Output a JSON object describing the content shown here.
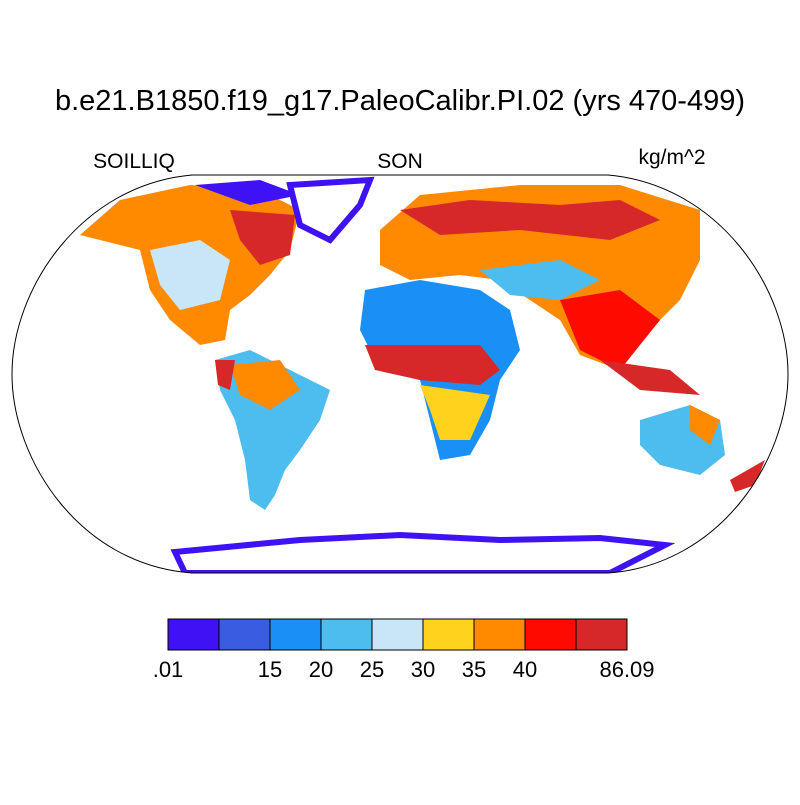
{
  "title": "b.e21.B1850.f19_g17.PaleoCalibr.PI.02 (yrs 470-499)",
  "left_label": "SOILLIQ",
  "center_label": "SON",
  "right_label": "kg/m^2",
  "colorbar": {
    "colors": [
      "#3f12f5",
      "#3a5ce0",
      "#1a8ff5",
      "#4dbdf0",
      "#c8e6f8",
      "#ffd21e",
      "#ff8a00",
      "#ff0a00",
      "#d62828"
    ],
    "levels": [
      {
        "value": 0.01,
        "label": ".01"
      },
      null,
      15,
      20,
      25,
      30,
      35,
      40,
      null,
      86.09
    ]
  }
}
